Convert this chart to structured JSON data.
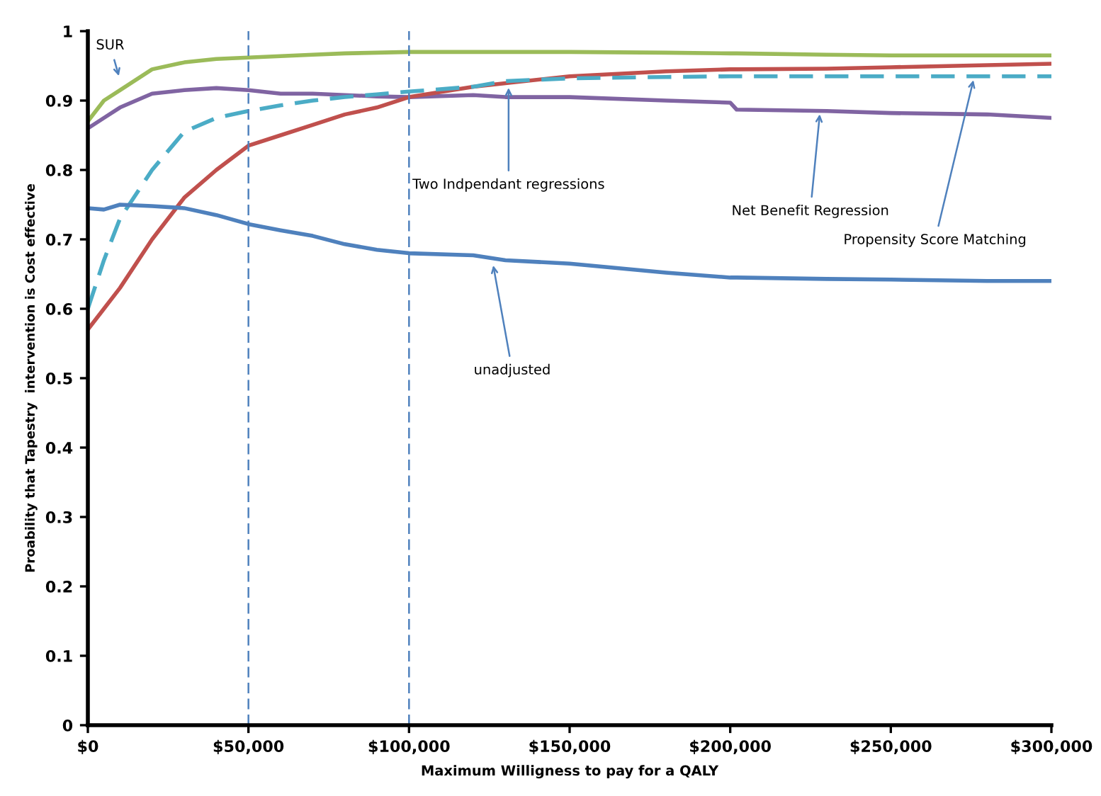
{
  "chart_data": {
    "type": "line",
    "xlabel": "Maximum Willigness to pay for a QALY",
    "ylabel": "Proability that Tapestry  intervention is Cost effective",
    "xlim": [
      0,
      300000
    ],
    "ylim": [
      0,
      1
    ],
    "xticks": [
      {
        "value": 0,
        "label": "$0"
      },
      {
        "value": 50000,
        "label": "$50,000"
      },
      {
        "value": 100000,
        "label": "$100,000"
      },
      {
        "value": 150000,
        "label": "$150,000"
      },
      {
        "value": 200000,
        "label": "$200,000"
      },
      {
        "value": 250000,
        "label": "$250,000"
      },
      {
        "value": 300000,
        "label": "$300,000"
      }
    ],
    "yticks": [
      0,
      0.1,
      0.2,
      0.3,
      0.4,
      0.5,
      0.6,
      0.7,
      0.8,
      0.9,
      1
    ],
    "grid": false,
    "legend": false,
    "marker": "none",
    "x": [
      0,
      5000,
      10000,
      20000,
      30000,
      40000,
      50000,
      60000,
      70000,
      80000,
      90000,
      100000,
      120000,
      130000,
      150000,
      180000,
      200000,
      202000,
      230000,
      250000,
      280000,
      300000
    ],
    "series": [
      {
        "color": "#9bbb59",
        "line_style": "solid",
        "values": [
          0.87,
          0.9,
          0.915,
          0.945,
          0.955,
          0.96,
          0.962,
          0.964,
          0.966,
          0.968,
          0.969,
          0.97,
          0.97,
          0.97,
          0.97,
          0.969,
          0.968,
          0.968,
          0.966,
          0.965,
          0.965,
          0.965
        ]
      },
      {
        "color": "#8064a2",
        "line_style": "solid",
        "values": [
          0.86,
          0.875,
          0.89,
          0.91,
          0.915,
          0.918,
          0.915,
          0.91,
          0.91,
          0.908,
          0.906,
          0.905,
          0.908,
          0.905,
          0.905,
          0.9,
          0.897,
          0.887,
          0.885,
          0.882,
          0.88,
          0.875
        ]
      },
      {
        "color": "#c0504d",
        "line_style": "solid",
        "values": [
          0.57,
          0.6,
          0.63,
          0.7,
          0.76,
          0.8,
          0.835,
          0.85,
          0.865,
          0.88,
          0.89,
          0.905,
          0.92,
          0.925,
          0.935,
          0.942,
          0.945,
          0.945,
          0.946,
          0.948,
          0.951,
          0.953
        ]
      },
      {
        "color": "#4bacc6",
        "line_style": "dashed",
        "values": [
          0.6,
          0.67,
          0.73,
          0.8,
          0.855,
          0.875,
          0.885,
          0.893,
          0.9,
          0.905,
          0.909,
          0.913,
          0.92,
          0.928,
          0.932,
          0.934,
          0.935,
          0.935,
          0.935,
          0.935,
          0.935,
          0.935
        ]
      },
      {
        "color": "#4f81bd",
        "line_style": "solid",
        "values": [
          0.745,
          0.743,
          0.75,
          0.748,
          0.745,
          0.735,
          0.722,
          0.713,
          0.705,
          0.693,
          0.685,
          0.68,
          0.677,
          0.67,
          0.665,
          0.652,
          0.645,
          0.645,
          0.643,
          0.642,
          0.64,
          0.64
        ]
      }
    ],
    "ref_lines": [
      {
        "axis": "x",
        "value": 50000,
        "color": "#4f81bd",
        "line_style": "dashed"
      },
      {
        "axis": "x",
        "value": 100000,
        "color": "#4f81bd",
        "line_style": "dashed"
      }
    ],
    "annotations": [
      {
        "text": "SUR",
        "x": 10000,
        "y": 0.93
      },
      {
        "text": "Two Indpendant regressions",
        "x": 131000,
        "y": 0.924
      },
      {
        "text": "Net Benefit Regression",
        "x": 228000,
        "y": 0.886
      },
      {
        "text": "Propensity Score Matching",
        "x": 276000,
        "y": 0.935
      },
      {
        "text": "unadjusted",
        "x": 126000,
        "y": 0.668
      }
    ]
  }
}
